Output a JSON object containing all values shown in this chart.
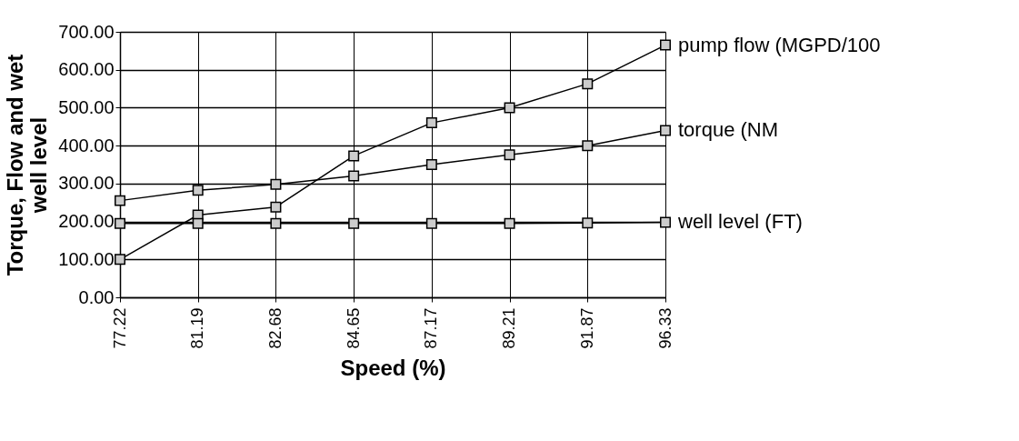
{
  "chart_data": {
    "type": "line",
    "xlabel": "Speed (%)",
    "ylabel": "Torque, Flow and wet well level",
    "categories": [
      "77.22",
      "81.19",
      "82.68",
      "84.65",
      "87.17",
      "89.21",
      "91.87",
      "96.33"
    ],
    "series": [
      {
        "name": "pump flow (MGPD/100",
        "color": "#000000",
        "values": [
          100,
          217,
          238,
          373,
          460,
          500,
          563,
          665
        ]
      },
      {
        "name": "torque (NM",
        "color": "#000000",
        "values": [
          255,
          282,
          298,
          320,
          350,
          376,
          400,
          440
        ]
      },
      {
        "name": "well level (FT)",
        "color": "#000000",
        "values": [
          195,
          195,
          195,
          195,
          195,
          195,
          196,
          198
        ]
      }
    ],
    "ylim": [
      0,
      700
    ],
    "yticks": [
      {
        "value": 0,
        "label": "0.00"
      },
      {
        "value": 100,
        "label": "100.00"
      },
      {
        "value": 200,
        "label": "200.00"
      },
      {
        "value": 300,
        "label": "300.00"
      },
      {
        "value": 400,
        "label": "400.00"
      },
      {
        "value": 500,
        "label": "500.00"
      },
      {
        "value": 600,
        "label": "600.00"
      },
      {
        "value": 700,
        "label": "700.00"
      }
    ],
    "grid": true,
    "legend": false,
    "marker": "square",
    "line_style": "solid"
  }
}
